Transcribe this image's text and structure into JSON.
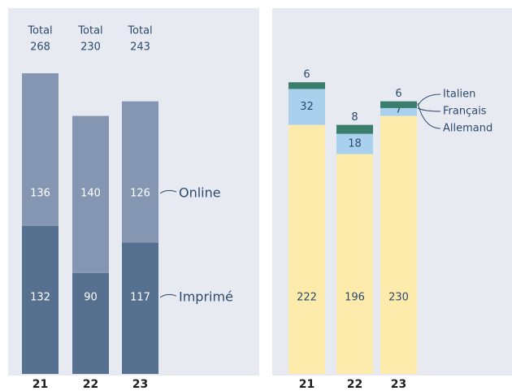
{
  "chart_data": [
    {
      "type": "stacked-bar",
      "categories": [
        "21",
        "22",
        "23"
      ],
      "total_label": "Total",
      "totals": [
        268,
        230,
        243
      ],
      "series": [
        {
          "name": "Imprimé",
          "color": "#56708f",
          "values": [
            132,
            90,
            117
          ]
        },
        {
          "name": "Online",
          "color": "#8496b2",
          "values": [
            136,
            140,
            126
          ]
        }
      ]
    },
    {
      "type": "stacked-bar",
      "categories": [
        "21",
        "22",
        "23"
      ],
      "series": [
        {
          "name": "Allemand",
          "color": "#fcebaa",
          "values": [
            222,
            196,
            230
          ]
        },
        {
          "name": "Français",
          "color": "#a9d1ee",
          "values": [
            32,
            18,
            7
          ]
        },
        {
          "name": "Italien",
          "color": "#3a7f6c",
          "values": [
            6,
            8,
            6
          ]
        }
      ]
    }
  ]
}
